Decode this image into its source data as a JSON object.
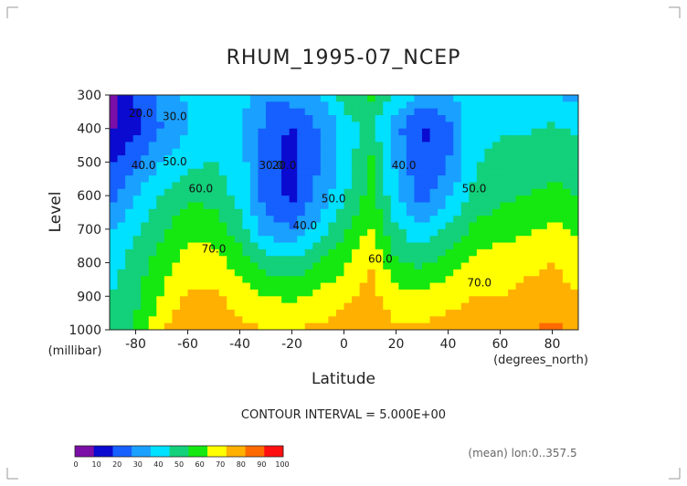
{
  "chart_data": {
    "type": "heatmap",
    "title": "RHUM_1995-07_NCEP",
    "xlabel": "Latitude",
    "xunit": "(degrees_north)",
    "ylabel": "Level",
    "yunit": "(millibar)",
    "xlim": [
      -90,
      90
    ],
    "ylim": [
      1000,
      300
    ],
    "x_ticks": [
      "-80",
      "-60",
      "-40",
      "-20",
      "0",
      "20",
      "40",
      "60",
      "80"
    ],
    "y_ticks": [
      "300",
      "400",
      "500",
      "600",
      "700",
      "800",
      "900",
      "1000"
    ],
    "contour_interval_text": "CONTOUR INTERVAL = 5.000E+00",
    "footnote": "(mean) lon:0..357.5",
    "colorbar": {
      "labels": [
        "0",
        "10",
        "20",
        "30",
        "40",
        "50",
        "60",
        "70",
        "80",
        "90",
        "100"
      ],
      "colors": [
        "#7b0ea6",
        "#0a0ad0",
        "#1560ff",
        "#1aa0ff",
        "#00e0ff",
        "#13d07a",
        "#14e810",
        "#ffff00",
        "#ffb000",
        "#ff6a00",
        "#ff1010"
      ]
    },
    "contour_labels": [
      {
        "text": "20.0",
        "lat": -78,
        "level": 365
      },
      {
        "text": "30.0",
        "lat": -65,
        "level": 375
      },
      {
        "text": "40.0",
        "lat": -77,
        "level": 520
      },
      {
        "text": "50.0",
        "lat": -65,
        "level": 510
      },
      {
        "text": "60.0",
        "lat": -55,
        "level": 590
      },
      {
        "text": "70.0",
        "lat": -50,
        "level": 770
      },
      {
        "text": "30.0",
        "lat": -28,
        "level": 520
      },
      {
        "text": "20.0",
        "lat": -23,
        "level": 520
      },
      {
        "text": "40.0",
        "lat": -15,
        "level": 700
      },
      {
        "text": "50.0",
        "lat": -4,
        "level": 620
      },
      {
        "text": "40.0",
        "lat": 23,
        "level": 520
      },
      {
        "text": "60.0",
        "lat": 14,
        "level": 800
      },
      {
        "text": "50.0",
        "lat": 50,
        "level": 590
      },
      {
        "text": "70.0",
        "lat": 52,
        "level": 870
      }
    ],
    "lats": [
      -90,
      -80,
      -70,
      -60,
      -50,
      -40,
      -30,
      -20,
      -10,
      0,
      10,
      20,
      30,
      40,
      50,
      60,
      70,
      80,
      90
    ],
    "levels": [
      300,
      400,
      500,
      600,
      700,
      800,
      900,
      1000
    ],
    "values": [
      [
        5,
        20,
        32,
        42,
        45,
        45,
        30,
        35,
        38,
        55,
        62,
        48,
        38,
        38,
        48,
        48,
        48,
        40,
        38
      ],
      [
        8,
        18,
        30,
        40,
        42,
        42,
        28,
        18,
        30,
        42,
        55,
        32,
        18,
        26,
        48,
        48,
        48,
        52,
        48
      ],
      [
        18,
        28,
        40,
        48,
        50,
        45,
        25,
        15,
        30,
        44,
        62,
        38,
        20,
        30,
        48,
        55,
        55,
        58,
        55
      ],
      [
        25,
        40,
        50,
        58,
        56,
        46,
        25,
        18,
        32,
        48,
        64,
        42,
        26,
        38,
        52,
        58,
        60,
        62,
        60
      ],
      [
        38,
        48,
        58,
        68,
        66,
        54,
        35,
        30,
        44,
        58,
        70,
        52,
        40,
        52,
        62,
        66,
        68,
        72,
        68
      ],
      [
        45,
        55,
        65,
        74,
        74,
        66,
        56,
        52,
        60,
        68,
        80,
        62,
        58,
        66,
        74,
        76,
        78,
        80,
        78
      ],
      [
        50,
        58,
        70,
        82,
        82,
        76,
        70,
        68,
        72,
        78,
        84,
        74,
        72,
        76,
        80,
        80,
        82,
        82,
        80
      ],
      [
        55,
        62,
        78,
        90,
        86,
        82,
        80,
        80,
        82,
        84,
        84,
        82,
        82,
        84,
        86,
        88,
        90,
        92,
        88
      ]
    ]
  }
}
